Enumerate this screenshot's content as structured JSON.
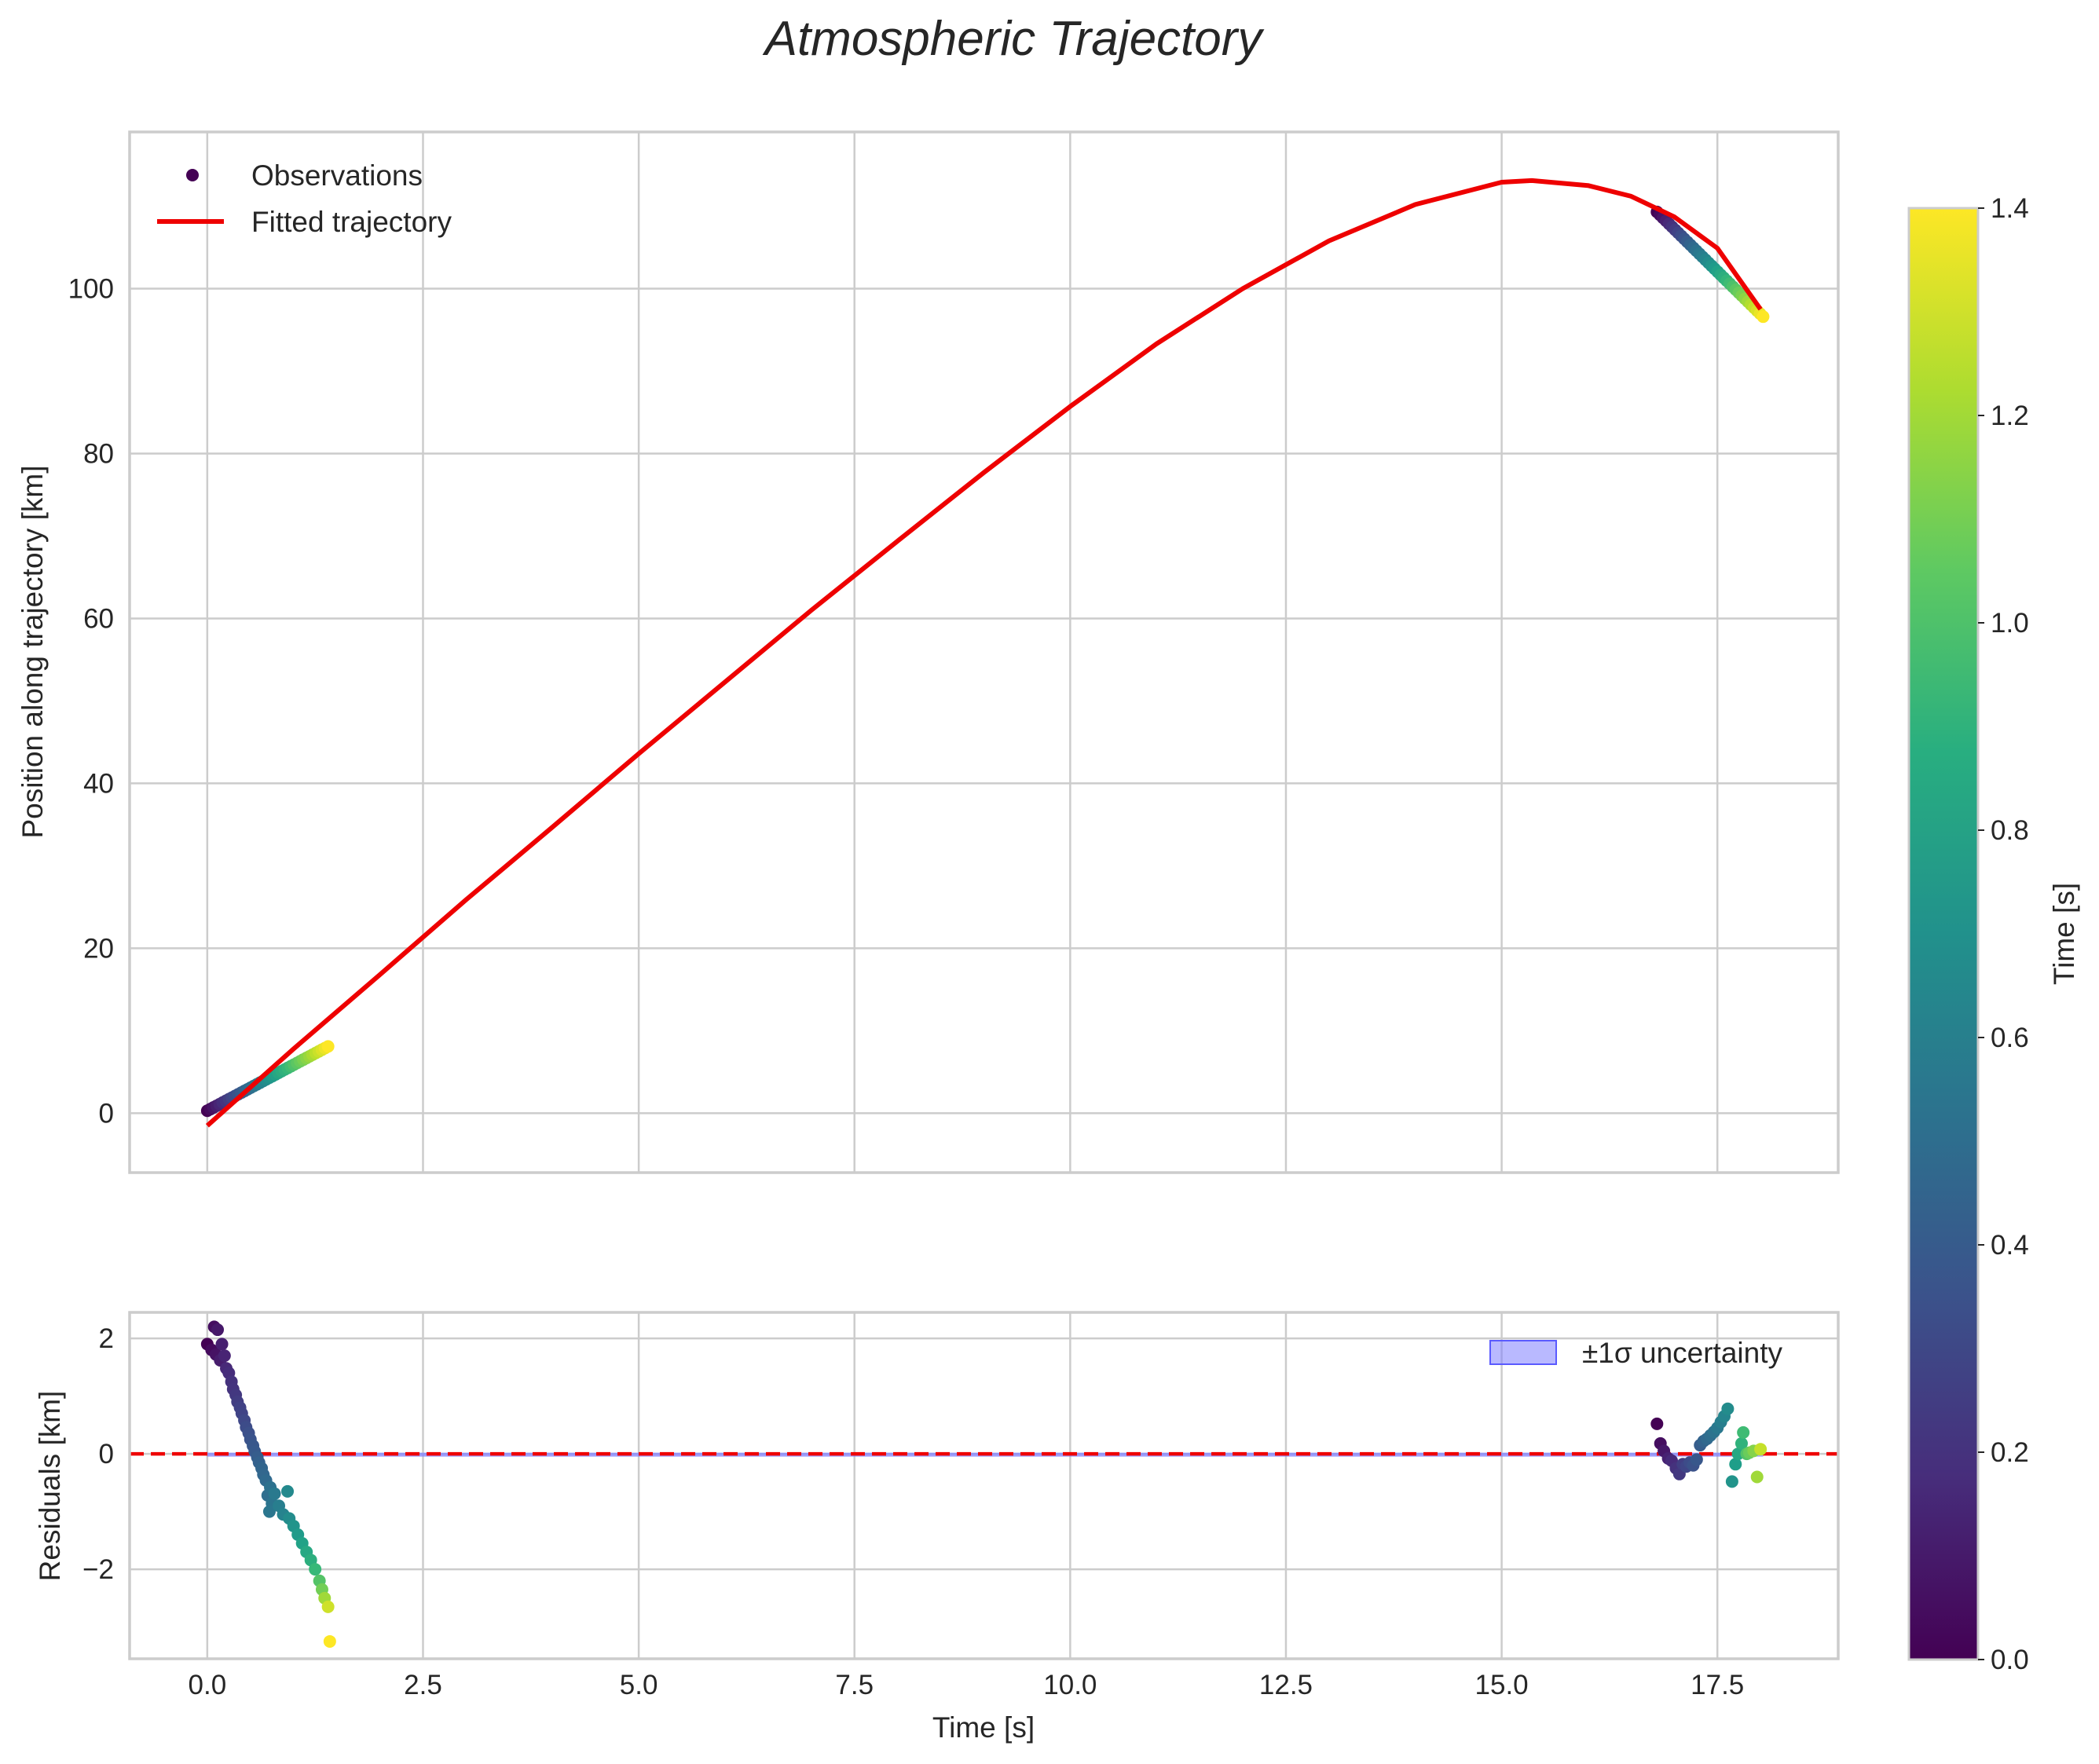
{
  "chart_data": {
    "title": "Atmospheric Trajectory",
    "colormap": "viridis",
    "colorbar": {
      "label": "Time [s]",
      "range": [
        0.0,
        1.4
      ],
      "ticks": [
        "0.0",
        "0.2",
        "0.4",
        "0.6",
        "0.8",
        "1.0",
        "1.2",
        "1.4"
      ]
    },
    "xlabel": "Time [s]",
    "xlim": [
      -0.9,
      18.9
    ],
    "xticks": [
      0.0,
      2.5,
      5.0,
      7.5,
      10.0,
      12.5,
      15.0,
      17.5
    ],
    "xtick_labels": [
      "0.0",
      "2.5",
      "5.0",
      "7.5",
      "10.0",
      "12.5",
      "15.0",
      "17.5"
    ],
    "panels": [
      {
        "type": "scatter+line",
        "ylabel": "Position along trajectory [km]",
        "ylim": [
          -7.2,
          119
        ],
        "yticks": [
          0,
          20,
          40,
          60,
          80,
          100
        ],
        "ytick_labels": [
          "0",
          "20",
          "40",
          "60",
          "80",
          "100"
        ],
        "legend": {
          "location": "upper left",
          "entries": [
            "Observations",
            "Fitted trajectory"
          ]
        },
        "series": [
          {
            "name": "Observations",
            "type": "scatter",
            "color_by": "time",
            "segments": [
              {
                "x_start": 0.0,
                "x_end": 1.4,
                "y_start": 0.3,
                "y_end": 8.1,
                "c_start": 0.0,
                "c_end": 1.4,
                "count": 40
              },
              {
                "x_start": 16.8,
                "x_end": 18.03,
                "y_start": 109.3,
                "y_end": 96.6,
                "c_start": 0.0,
                "c_end": 1.4,
                "count": 36
              }
            ]
          },
          {
            "name": "Fitted trajectory",
            "type": "line",
            "color": "#ee0000",
            "x": [
              0.0,
              1.0,
              2.0,
              3.0,
              4.0,
              5.0,
              6.0,
              7.0,
              8.0,
              9.0,
              10.0,
              11.0,
              12.0,
              13.0,
              14.0,
              15.0,
              15.35,
              16.0,
              16.5,
              17.0,
              17.5,
              18.0
            ],
            "y": [
              -1.5,
              7.8,
              16.8,
              25.9,
              34.7,
              43.6,
              52.3,
              61.0,
              69.4,
              77.7,
              85.7,
              93.3,
              100.0,
              105.8,
              110.2,
              112.9,
              113.1,
              112.5,
              111.2,
              108.7,
              104.9,
              97.5
            ]
          }
        ]
      },
      {
        "type": "scatter+band",
        "ylabel": "Residuals [km]",
        "ylim": [
          -3.55,
          2.45
        ],
        "yticks": [
          -2,
          0,
          2
        ],
        "ytick_labels": [
          "−2",
          "0",
          "2"
        ],
        "legend": {
          "location": "upper right",
          "entries": [
            "±1σ uncertainty"
          ]
        },
        "zero_line": {
          "y": 0,
          "color": "#ee0000",
          "style": "dashed"
        },
        "band": {
          "name": "±1σ uncertainty",
          "x": [
            0.0,
            18.03
          ],
          "lower": -0.02,
          "upper": 0.02,
          "color": "#8080ff"
        },
        "series": [
          {
            "name": "Residuals",
            "type": "scatter",
            "color_by": "time",
            "points": [
              [
                0.0,
                1.9,
                0.0
              ],
              [
                0.05,
                1.8,
                0.04
              ],
              [
                0.08,
                2.2,
                0.05
              ],
              [
                0.1,
                1.72,
                0.07
              ],
              [
                0.12,
                2.15,
                0.09
              ],
              [
                0.15,
                1.62,
                0.11
              ],
              [
                0.17,
                1.9,
                0.12
              ],
              [
                0.2,
                1.7,
                0.14
              ],
              [
                0.22,
                1.48,
                0.16
              ],
              [
                0.25,
                1.4,
                0.18
              ],
              [
                0.28,
                1.25,
                0.2
              ],
              [
                0.3,
                1.12,
                0.21
              ],
              [
                0.33,
                1.02,
                0.23
              ],
              [
                0.35,
                0.9,
                0.25
              ],
              [
                0.38,
                0.8,
                0.27
              ],
              [
                0.4,
                0.7,
                0.28
              ],
              [
                0.43,
                0.58,
                0.3
              ],
              [
                0.45,
                0.46,
                0.32
              ],
              [
                0.48,
                0.36,
                0.34
              ],
              [
                0.5,
                0.25,
                0.36
              ],
              [
                0.53,
                0.14,
                0.38
              ],
              [
                0.55,
                0.04,
                0.39
              ],
              [
                0.58,
                -0.06,
                0.41
              ],
              [
                0.6,
                -0.15,
                0.43
              ],
              [
                0.63,
                -0.25,
                0.45
              ],
              [
                0.65,
                -0.36,
                0.46
              ],
              [
                0.68,
                -0.46,
                0.48
              ],
              [
                0.7,
                -0.72,
                0.5
              ],
              [
                0.73,
                -0.58,
                0.52
              ],
              [
                0.75,
                -0.86,
                0.54
              ],
              [
                0.72,
                -1.0,
                0.55
              ],
              [
                0.78,
                -0.69,
                0.57
              ],
              [
                0.83,
                -0.9,
                0.6
              ],
              [
                0.88,
                -1.05,
                0.63
              ],
              [
                0.93,
                -0.65,
                0.66
              ],
              [
                0.95,
                -1.12,
                0.68
              ],
              [
                1.0,
                -1.25,
                0.72
              ],
              [
                1.05,
                -1.4,
                0.76
              ],
              [
                1.1,
                -1.55,
                0.8
              ],
              [
                1.15,
                -1.7,
                0.84
              ],
              [
                1.2,
                -1.84,
                0.88
              ],
              [
                1.25,
                -2.0,
                0.94
              ],
              [
                1.3,
                -2.2,
                1.02
              ],
              [
                1.33,
                -2.35,
                1.1
              ],
              [
                1.36,
                -2.5,
                1.2
              ],
              [
                1.4,
                -2.65,
                1.3
              ],
              [
                1.42,
                -3.25,
                1.4
              ],
              [
                16.8,
                0.52,
                0.0
              ],
              [
                16.84,
                0.18,
                0.05
              ],
              [
                16.88,
                0.05,
                0.09
              ],
              [
                16.93,
                -0.08,
                0.13
              ],
              [
                16.97,
                -0.12,
                0.17
              ],
              [
                17.02,
                -0.25,
                0.2
              ],
              [
                17.06,
                -0.35,
                0.23
              ],
              [
                17.1,
                -0.18,
                0.26
              ],
              [
                17.14,
                -0.22,
                0.29
              ],
              [
                17.18,
                -0.15,
                0.32
              ],
              [
                17.22,
                -0.2,
                0.35
              ],
              [
                17.26,
                -0.1,
                0.38
              ],
              [
                17.3,
                0.15,
                0.41
              ],
              [
                17.34,
                0.22,
                0.44
              ],
              [
                17.38,
                0.26,
                0.47
              ],
              [
                17.42,
                0.32,
                0.5
              ],
              [
                17.46,
                0.38,
                0.53
              ],
              [
                17.5,
                0.45,
                0.56
              ],
              [
                17.54,
                0.55,
                0.6
              ],
              [
                17.58,
                0.65,
                0.64
              ],
              [
                17.62,
                0.78,
                0.68
              ],
              [
                17.67,
                -0.48,
                0.72
              ],
              [
                17.71,
                -0.18,
                0.78
              ],
              [
                17.74,
                0.0,
                0.84
              ],
              [
                17.78,
                0.18,
                0.9
              ],
              [
                17.8,
                0.37,
                0.96
              ],
              [
                17.84,
                0.0,
                1.02
              ],
              [
                17.87,
                0.02,
                1.08
              ],
              [
                17.92,
                0.05,
                1.14
              ],
              [
                17.96,
                -0.4,
                1.2
              ],
              [
                18.0,
                0.08,
                1.28
              ]
            ]
          }
        ]
      }
    ]
  }
}
